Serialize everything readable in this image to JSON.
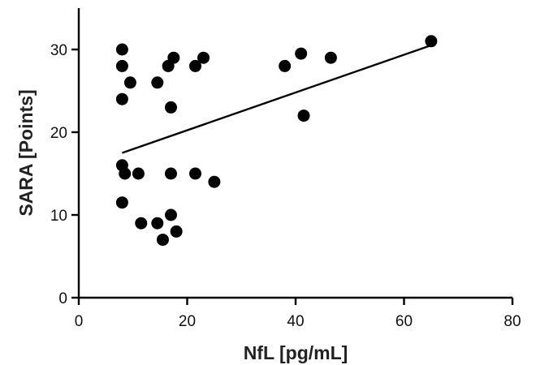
{
  "chart_data": {
    "type": "scatter",
    "title": "",
    "xlabel": "NfL [pg/mL]",
    "ylabel": "SARA [Points]",
    "xlim": [
      0,
      80
    ],
    "ylim": [
      0,
      35
    ],
    "x_ticks": [
      0,
      20,
      40,
      60,
      80
    ],
    "y_ticks": [
      0,
      10,
      20,
      30
    ],
    "grid": false,
    "points": [
      {
        "x": 8,
        "y": 30
      },
      {
        "x": 8,
        "y": 28
      },
      {
        "x": 8,
        "y": 24
      },
      {
        "x": 9.5,
        "y": 26
      },
      {
        "x": 8,
        "y": 16
      },
      {
        "x": 8.5,
        "y": 15
      },
      {
        "x": 11,
        "y": 15
      },
      {
        "x": 8,
        "y": 11.5
      },
      {
        "x": 11.5,
        "y": 9
      },
      {
        "x": 14.5,
        "y": 9
      },
      {
        "x": 15.5,
        "y": 7
      },
      {
        "x": 17,
        "y": 10
      },
      {
        "x": 18,
        "y": 8
      },
      {
        "x": 14.5,
        "y": 26
      },
      {
        "x": 16.5,
        "y": 28
      },
      {
        "x": 17.5,
        "y": 29
      },
      {
        "x": 17,
        "y": 23
      },
      {
        "x": 17,
        "y": 15
      },
      {
        "x": 21.5,
        "y": 28
      },
      {
        "x": 23,
        "y": 29
      },
      {
        "x": 21.5,
        "y": 15
      },
      {
        "x": 25,
        "y": 14
      },
      {
        "x": 38,
        "y": 28
      },
      {
        "x": 41,
        "y": 29.5
      },
      {
        "x": 46.5,
        "y": 29
      },
      {
        "x": 41.5,
        "y": 22
      },
      {
        "x": 65,
        "y": 31
      }
    ],
    "fit_line": {
      "x": [
        8,
        65
      ],
      "y": [
        17.5,
        30.5
      ]
    }
  }
}
